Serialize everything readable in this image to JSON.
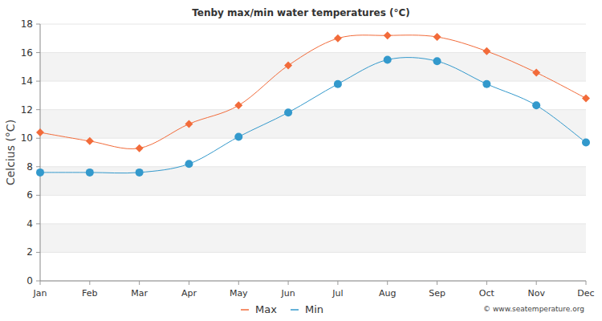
{
  "chart_data": {
    "type": "line",
    "title": "Tenby max/min water temperatures (°C)",
    "y_label": "Celcius (°C)",
    "categories": [
      "Jan",
      "Feb",
      "Mar",
      "Apr",
      "May",
      "Jun",
      "Jul",
      "Aug",
      "Sep",
      "Oct",
      "Nov",
      "Dec"
    ],
    "series": [
      {
        "name": "Max",
        "color": "#f26b3a",
        "marker": "diamond",
        "line_style": "solid",
        "values": [
          10.4,
          9.8,
          9.3,
          11.0,
          12.3,
          15.1,
          17.0,
          17.2,
          17.1,
          16.1,
          14.6,
          12.8
        ]
      },
      {
        "name": "Min",
        "color": "#3399cc",
        "marker": "circle",
        "line_style": "solid",
        "values": [
          7.6,
          7.6,
          7.6,
          8.2,
          10.1,
          11.8,
          13.8,
          15.5,
          15.4,
          13.8,
          12.3,
          9.7
        ]
      }
    ],
    "ylim": [
      0,
      18
    ],
    "yticks": [
      0,
      2,
      4,
      6,
      8,
      10,
      12,
      14,
      16,
      18
    ],
    "grid": true,
    "legend": "bottom",
    "annotations": [
      "© www.seatemperature.org"
    ]
  }
}
